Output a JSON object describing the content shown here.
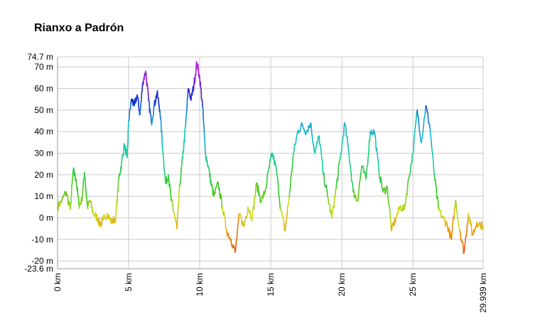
{
  "chart_data": {
    "type": "line",
    "title": "Rianxo a Padrón",
    "xlabel": "",
    "ylabel": "",
    "xlim": [
      0,
      29.939
    ],
    "ylim": [
      -23.6,
      74.7
    ],
    "y_ticks": [
      {
        "value": 74.7,
        "label": "74.7 m"
      },
      {
        "value": 70,
        "label": "70 m"
      },
      {
        "value": 60,
        "label": "60 m"
      },
      {
        "value": 50,
        "label": "50 m"
      },
      {
        "value": 40,
        "label": "40 m"
      },
      {
        "value": 30,
        "label": "30 m"
      },
      {
        "value": 20,
        "label": "20 m"
      },
      {
        "value": 10,
        "label": "10 m"
      },
      {
        "value": 0,
        "label": "0 m"
      },
      {
        "value": -10,
        "label": "-10 m"
      },
      {
        "value": -20,
        "label": "-20 m"
      },
      {
        "value": -23.6,
        "label": "-23.6 m"
      }
    ],
    "x_ticks": [
      {
        "value": 0,
        "label": "0 km"
      },
      {
        "value": 5,
        "label": "5 km"
      },
      {
        "value": 10,
        "label": "10 km"
      },
      {
        "value": 15,
        "label": "15 km"
      },
      {
        "value": 20,
        "label": "20 km"
      },
      {
        "value": 25,
        "label": "25 km"
      },
      {
        "value": 29.939,
        "label": "29.939 km"
      }
    ],
    "grid": true,
    "color_scale": "elevation-rainbow: red (low) → yellow → green → cyan → blue → magenta (high)",
    "series": [
      {
        "x": [
          0,
          0.3,
          0.6,
          0.9,
          1.1,
          1.3,
          1.5,
          1.7,
          1.9,
          2.1,
          2.3,
          2.5,
          2.8,
          3.0,
          3.2,
          3.5,
          3.8,
          4.1,
          4.3,
          4.5,
          4.7,
          4.9,
          5.0,
          5.2,
          5.4,
          5.6,
          5.8,
          6.0,
          6.2,
          6.4,
          6.6,
          6.8,
          7.0,
          7.2,
          7.4,
          7.6,
          7.8,
          8.0,
          8.2,
          8.4,
          8.6,
          8.8,
          9.0,
          9.2,
          9.4,
          9.6,
          9.8,
          10.0,
          10.2,
          10.4,
          10.6,
          10.8,
          11.0,
          11.3,
          11.6,
          11.9,
          12.2,
          12.5,
          12.8,
          13.1,
          13.4,
          13.7,
          14.0,
          14.3,
          14.6,
          14.9,
          15.1,
          15.4,
          15.7,
          16.0,
          16.3,
          16.6,
          16.9,
          17.2,
          17.5,
          17.8,
          18.1,
          18.4,
          18.7,
          19.0,
          19.3,
          19.6,
          19.9,
          20.2,
          20.5,
          20.8,
          21.1,
          21.4,
          21.7,
          22.0,
          22.3,
          22.6,
          22.9,
          23.2,
          23.5,
          23.8,
          24.1,
          24.4,
          24.7,
          25.0,
          25.3,
          25.6,
          25.9,
          26.2,
          26.5,
          26.8,
          27.1,
          27.4,
          27.7,
          28.0,
          28.3,
          28.6,
          28.9,
          29.2,
          29.5,
          29.939
        ],
        "y": [
          5,
          8,
          12,
          4,
          22,
          18,
          6,
          8,
          21,
          5,
          8,
          2,
          0,
          -3,
          -1,
          2,
          -2,
          0,
          18,
          25,
          34,
          28,
          45,
          55,
          52,
          57,
          48,
          63,
          68,
          55,
          44,
          52,
          58,
          50,
          32,
          16,
          20,
          8,
          2,
          -5,
          15,
          28,
          42,
          60,
          55,
          62,
          72,
          65,
          52,
          30,
          24,
          16,
          10,
          16,
          5,
          -6,
          -10,
          -16,
          2,
          -4,
          5,
          0,
          16,
          8,
          12,
          24,
          30,
          22,
          4,
          -6,
          10,
          30,
          40,
          43,
          40,
          44,
          30,
          38,
          20,
          10,
          0,
          14,
          28,
          44,
          30,
          12,
          8,
          24,
          18,
          40,
          40,
          22,
          12,
          14,
          -6,
          0,
          5,
          4,
          18,
          30,
          50,
          35,
          52,
          42,
          20,
          4,
          0,
          -3,
          -10,
          8,
          -6,
          -16,
          2,
          -8,
          -2,
          -4
        ]
      }
    ]
  }
}
